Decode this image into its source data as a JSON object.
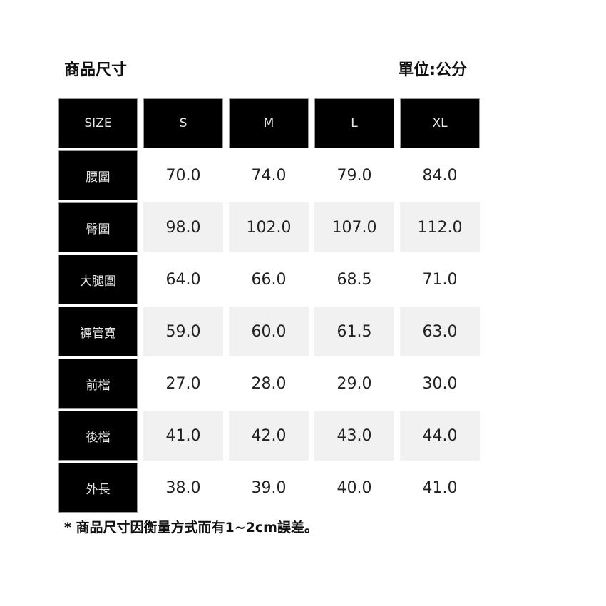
{
  "header": {
    "title": "商品尺寸",
    "unit": "單位:公分"
  },
  "table": {
    "columns": [
      "SIZE",
      "S",
      "M",
      "L",
      "XL"
    ],
    "rows": [
      {
        "label": "腰圍",
        "values": [
          "70.0",
          "74.0",
          "79.0",
          "84.0"
        ]
      },
      {
        "label": "臀圍",
        "values": [
          "98.0",
          "102.0",
          "107.0",
          "112.0"
        ]
      },
      {
        "label": "大腿圍",
        "values": [
          "64.0",
          "66.0",
          "68.5",
          "71.0"
        ]
      },
      {
        "label": "褲管寬",
        "values": [
          "59.0",
          "60.0",
          "61.5",
          "63.0"
        ]
      },
      {
        "label": "前檔",
        "values": [
          "27.0",
          "28.0",
          "29.0",
          "30.0"
        ]
      },
      {
        "label": "後檔",
        "values": [
          "41.0",
          "42.0",
          "43.0",
          "44.0"
        ]
      },
      {
        "label": "外長",
        "values": [
          "38.0",
          "39.0",
          "40.0",
          "41.0"
        ]
      }
    ]
  },
  "footnote": "* 商品尺寸因衡量方式而有1~2cm誤差。",
  "colors": {
    "header_bg": "#000000",
    "alt_row_bg": "#f1f1f1"
  }
}
